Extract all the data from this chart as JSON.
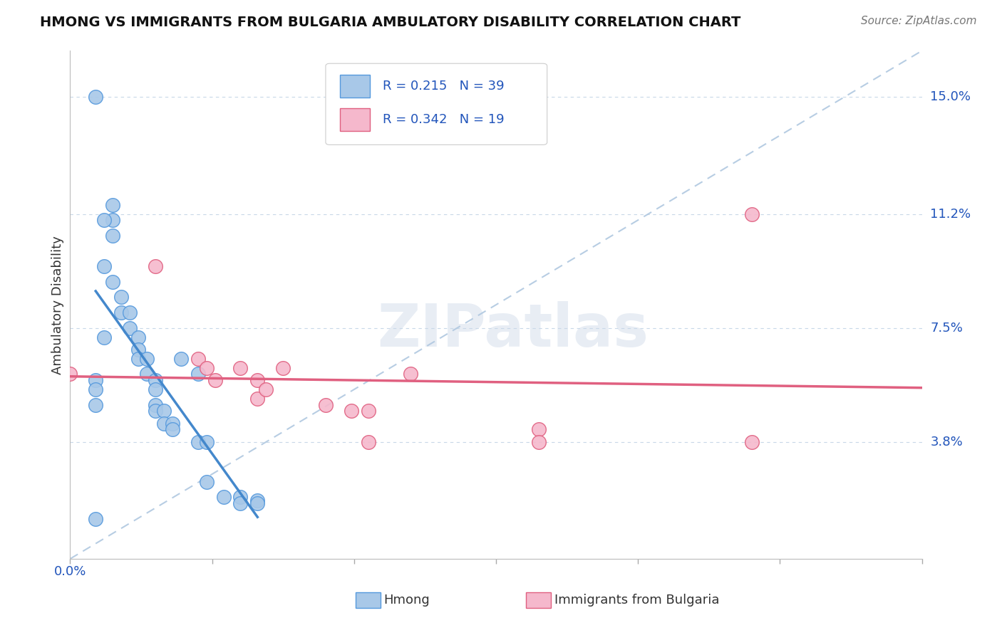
{
  "title": "HMONG VS IMMIGRANTS FROM BULGARIA AMBULATORY DISABILITY CORRELATION CHART",
  "source": "Source: ZipAtlas.com",
  "ylabel": "Ambulatory Disability",
  "y_tick_labels": [
    "3.8%",
    "7.5%",
    "11.2%",
    "15.0%"
  ],
  "y_tick_values": [
    0.038,
    0.075,
    0.112,
    0.15
  ],
  "xlim": [
    0.0,
    0.1
  ],
  "ylim": [
    0.0,
    0.165
  ],
  "hmong_R": 0.215,
  "hmong_N": 39,
  "bulgaria_R": 0.342,
  "bulgaria_N": 19,
  "hmong_color": "#a8c8e8",
  "hmong_line_color": "#4488cc",
  "hmong_edge_color": "#5599dd",
  "bulgaria_color": "#f5b8cc",
  "bulgaria_line_color": "#e06080",
  "bulgaria_edge_color": "#e06080",
  "diagonal_color": "#b0c8e0",
  "background_color": "#ffffff",
  "grid_color": "#c8d8e8",
  "legend_text_color": "#2255bb",
  "axis_label_color": "#2255bb",
  "title_color": "#111111",
  "source_color": "#777777",
  "hmong_x": [
    0.003,
    0.003,
    0.004,
    0.005,
    0.005,
    0.005,
    0.005,
    0.006,
    0.006,
    0.007,
    0.007,
    0.008,
    0.008,
    0.008,
    0.009,
    0.009,
    0.01,
    0.01,
    0.01,
    0.01,
    0.011,
    0.011,
    0.012,
    0.012,
    0.013,
    0.015,
    0.015,
    0.016,
    0.016,
    0.018,
    0.02,
    0.02,
    0.022,
    0.022,
    0.003,
    0.003,
    0.003,
    0.004,
    0.004
  ],
  "hmong_y": [
    0.15,
    0.013,
    0.095,
    0.115,
    0.11,
    0.105,
    0.09,
    0.085,
    0.08,
    0.08,
    0.075,
    0.072,
    0.068,
    0.065,
    0.065,
    0.06,
    0.058,
    0.055,
    0.05,
    0.048,
    0.048,
    0.044,
    0.044,
    0.042,
    0.065,
    0.06,
    0.038,
    0.025,
    0.038,
    0.02,
    0.02,
    0.018,
    0.019,
    0.018,
    0.058,
    0.055,
    0.05,
    0.072,
    0.11
  ],
  "bulgaria_x": [
    0.0,
    0.01,
    0.015,
    0.016,
    0.017,
    0.02,
    0.022,
    0.022,
    0.023,
    0.025,
    0.03,
    0.033,
    0.035,
    0.035,
    0.04,
    0.055,
    0.055,
    0.08,
    0.08
  ],
  "bulgaria_y": [
    0.06,
    0.095,
    0.065,
    0.062,
    0.058,
    0.062,
    0.058,
    0.052,
    0.055,
    0.062,
    0.05,
    0.048,
    0.048,
    0.038,
    0.06,
    0.042,
    0.038,
    0.112,
    0.038
  ]
}
